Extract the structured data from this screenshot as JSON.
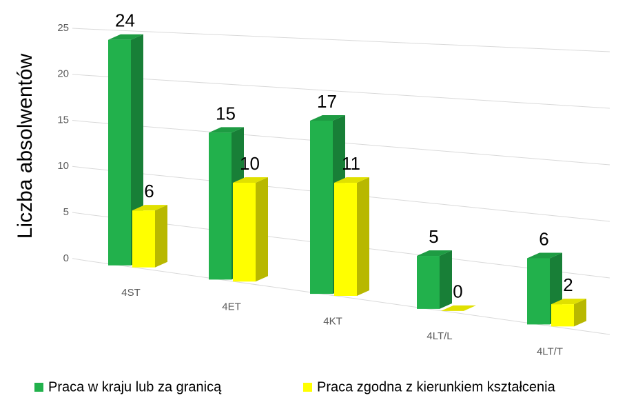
{
  "chart_data": {
    "type": "bar3d",
    "y_label": "Liczba absolwentów",
    "categories": [
      "4ST",
      "4ET",
      "4KT",
      "4LT/L",
      "4LT/T"
    ],
    "series": [
      {
        "name": "Praca w kraju lub za granicą",
        "color": "#22b14c",
        "values": [
          24,
          15,
          17,
          5,
          6
        ]
      },
      {
        "name": "Praca zgodna z kierunkiem kształcenia",
        "color": "#ffff00",
        "values": [
          6,
          10,
          11,
          0,
          2
        ]
      }
    ],
    "ylim": [
      0,
      25
    ],
    "yticks": [
      0,
      5,
      10,
      15,
      20,
      25
    ],
    "grid": true,
    "legend": "bottom"
  }
}
